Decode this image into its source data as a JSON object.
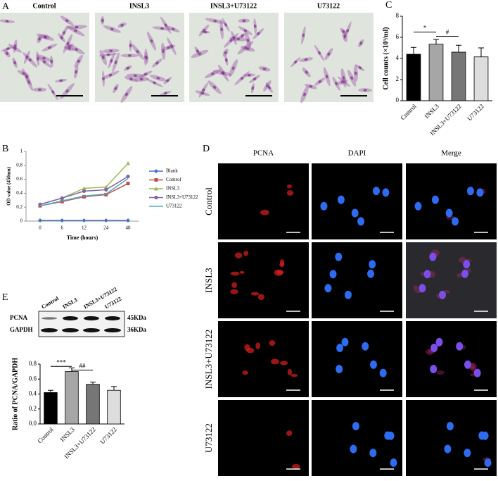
{
  "panel_labels": [
    "A",
    "B",
    "C",
    "D",
    "E"
  ],
  "microscopy": {
    "titles": [
      "Control",
      "INSL3",
      "INSL3+U73122",
      "U73122"
    ]
  },
  "immunofluorescence": {
    "columns": [
      "PCNA",
      "DAPI",
      "Merge"
    ],
    "rows": [
      "Control",
      "INSL3",
      "INSL3+U73122",
      "U73122"
    ]
  },
  "western_blot": {
    "lanes": [
      "Control",
      "INSL3",
      "INSL3+U73122",
      "U73122"
    ],
    "proteins": [
      "PCNA",
      "GAPDH"
    ],
    "sizes": [
      "45KDa",
      "36KDa"
    ]
  },
  "chart_data": [
    {
      "type": "bar",
      "ylabel": "Cell counts (×10³/ml)",
      "categories": [
        "Control",
        "INSL3",
        "INSL3+U73122",
        "U73122"
      ],
      "values": [
        4.4,
        5.35,
        4.6,
        4.15
      ],
      "errors": [
        0.65,
        0.45,
        0.65,
        0.85
      ],
      "colors": [
        "#000000",
        "#a6a6a6",
        "#767676",
        "#dddddd"
      ],
      "ylim": [
        0,
        8
      ],
      "yticks": [
        0,
        2,
        4,
        6,
        8
      ],
      "annotations": [
        "*",
        "#"
      ]
    },
    {
      "type": "line",
      "xlabel": "Time (hours)",
      "ylabel": "OD value (450nm)",
      "categories": [
        "0",
        "6",
        "12",
        "24",
        "48"
      ],
      "series": [
        {
          "name": "Blank",
          "color": "#4472c4",
          "marker": "diamond",
          "values": [
            0.01,
            0.01,
            0.01,
            0.01,
            0.01
          ]
        },
        {
          "name": "Control",
          "color": "#c0504d",
          "marker": "square",
          "values": [
            0.22,
            0.28,
            0.35,
            0.38,
            0.54
          ]
        },
        {
          "name": "INSL3",
          "color": "#9bbb59",
          "marker": "triangle",
          "values": [
            0.24,
            0.33,
            0.47,
            0.49,
            0.83
          ]
        },
        {
          "name": "INSL3+U73122",
          "color": "#8064a2",
          "marker": "circle",
          "values": [
            0.24,
            0.33,
            0.43,
            0.45,
            0.64
          ]
        },
        {
          "name": "U73122",
          "color": "#4bacc6",
          "marker": "none",
          "values": [
            0.22,
            0.29,
            0.36,
            0.39,
            0.61
          ]
        }
      ],
      "ylim": [
        0,
        1
      ],
      "yticks": [
        0,
        0.2,
        0.4,
        0.6,
        0.8,
        1
      ]
    },
    {
      "type": "bar",
      "ylabel": "Ratio of PCNA/GAPDH",
      "categories": [
        "Control",
        "INSL3",
        "INSL3+U73122",
        "U73122"
      ],
      "values": [
        0.42,
        0.7,
        0.53,
        0.45
      ],
      "errors": [
        0.03,
        0.05,
        0.03,
        0.05
      ],
      "colors": [
        "#000000",
        "#a6a6a6",
        "#767676",
        "#dddddd"
      ],
      "ylim": [
        0,
        0.8
      ],
      "yticks": [
        {
          "value": 0,
          "label": "0.0"
        },
        0.2,
        0.4,
        0.6,
        0.8
      ],
      "annotations": [
        "***",
        "##"
      ]
    }
  ]
}
